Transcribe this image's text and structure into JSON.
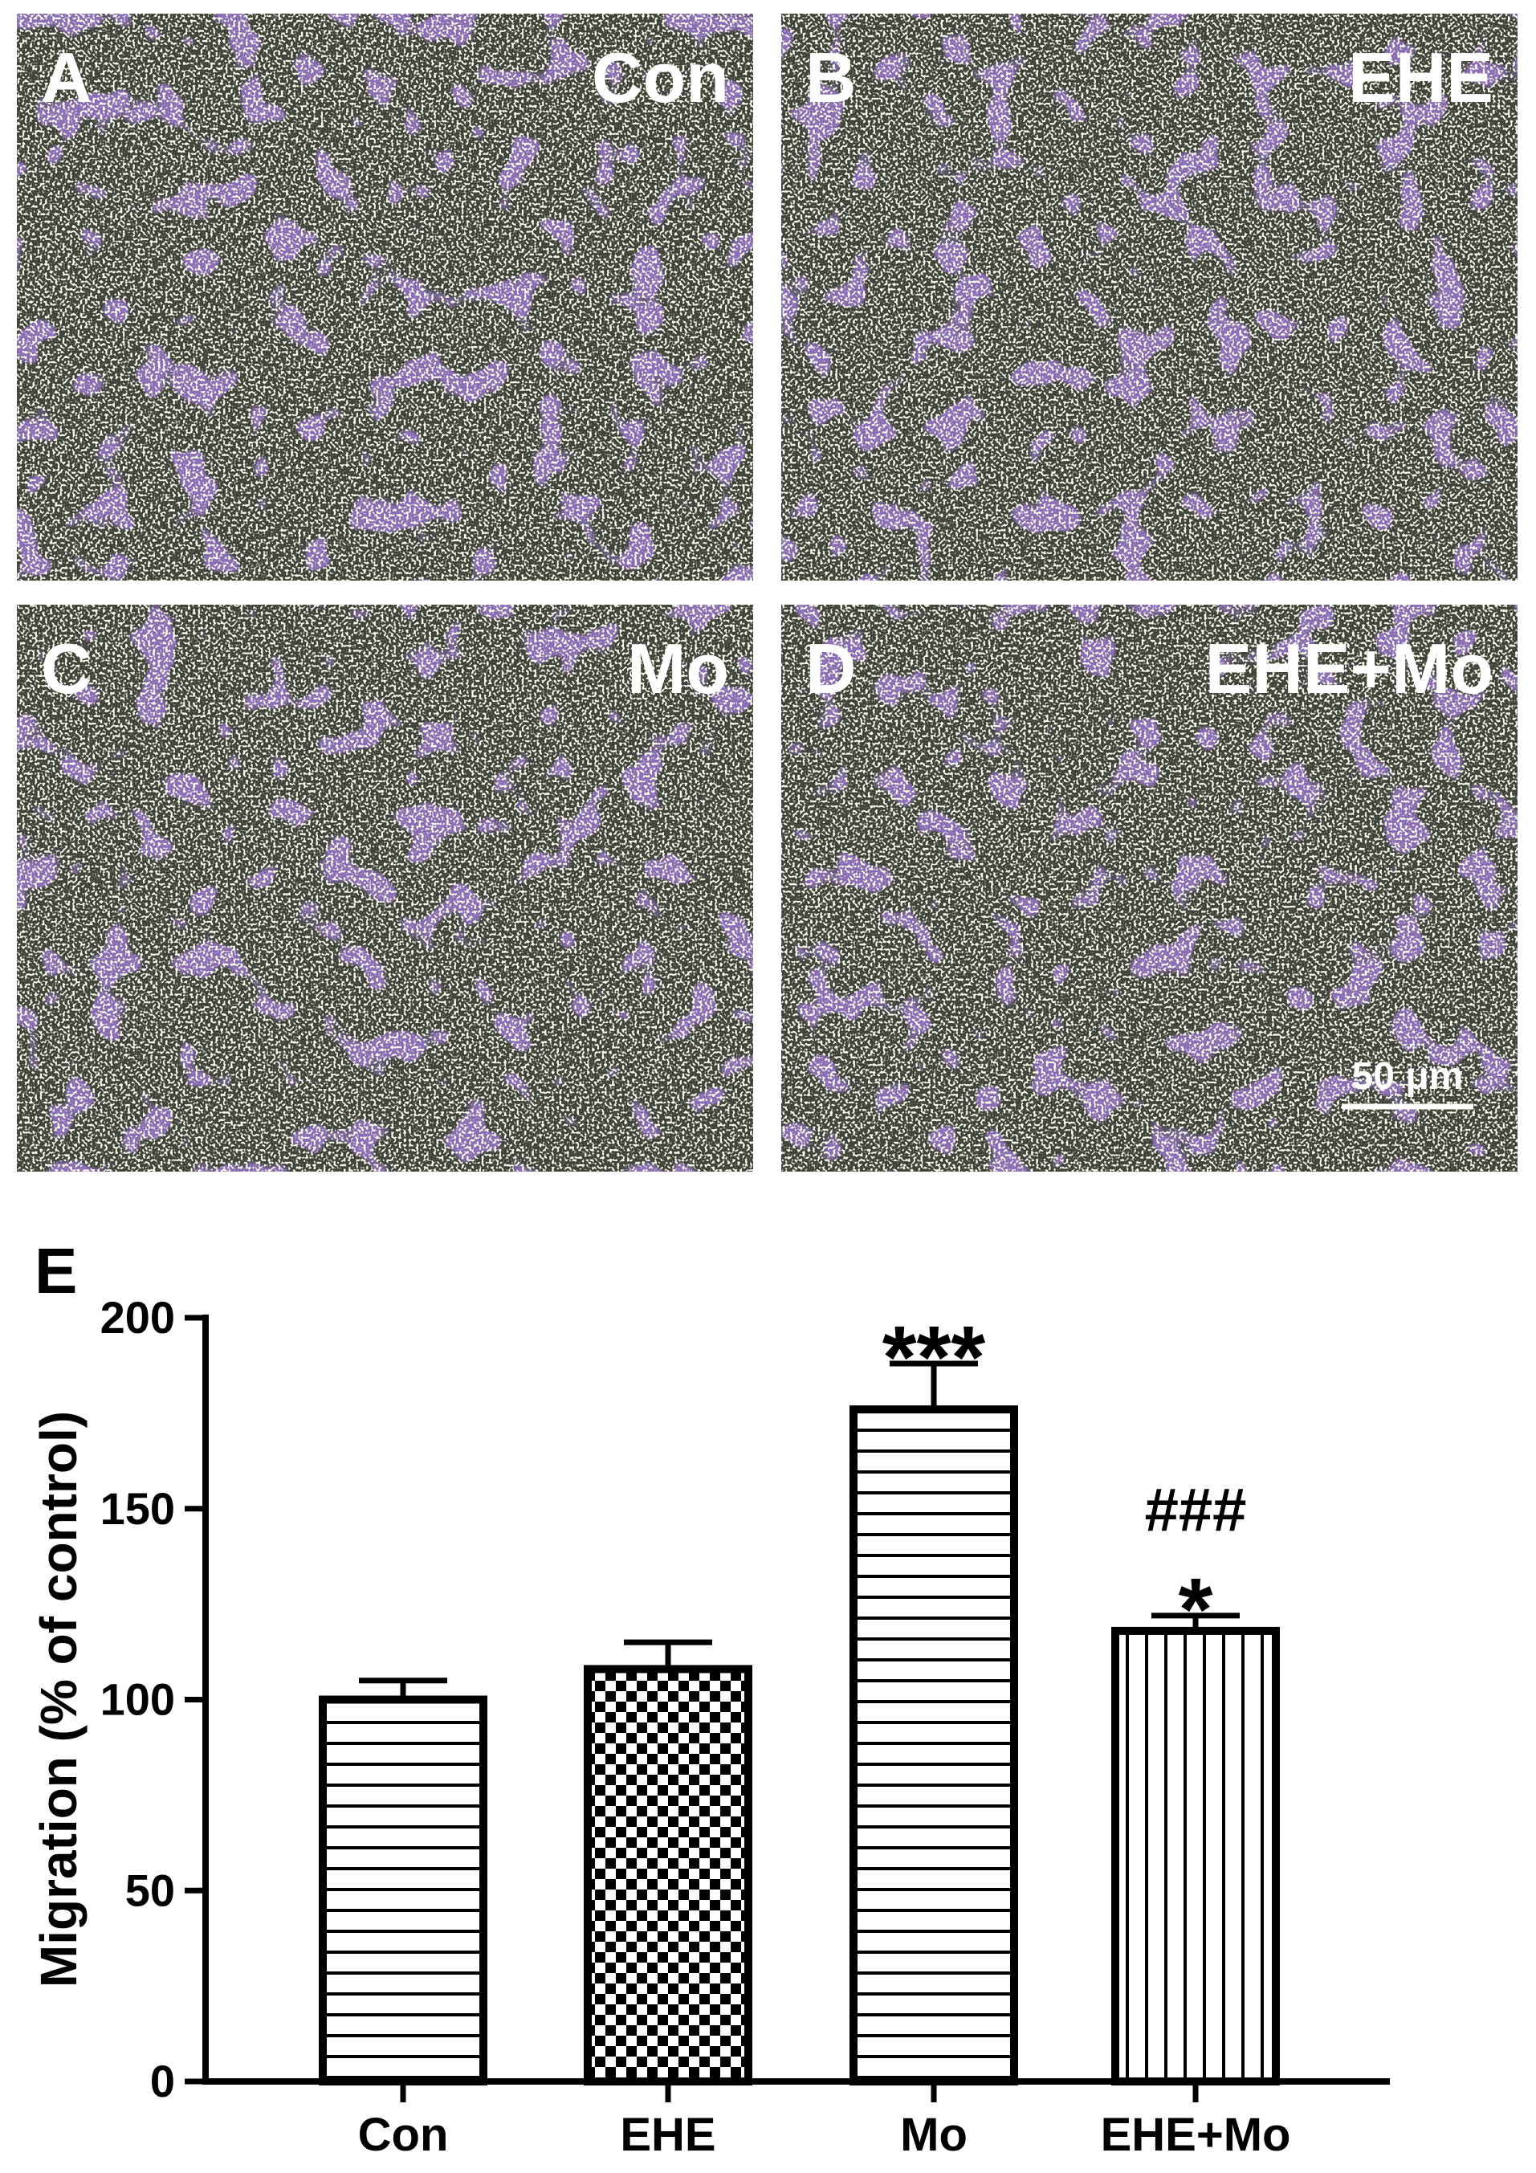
{
  "panels": [
    {
      "letter": "A",
      "label": "Con"
    },
    {
      "letter": "B",
      "label": "EHE"
    },
    {
      "letter": "C",
      "label": "Mo"
    },
    {
      "letter": "D",
      "label": "EHE+Mo"
    }
  ],
  "scale_bar": "50 μm",
  "chart_data": {
    "type": "bar",
    "panel_letter": "E",
    "y_label": "Migration (% of control)",
    "categories": [
      "Con",
      "EHE",
      "Mo",
      "EHE+Mo"
    ],
    "values": [
      100,
      108,
      176,
      118
    ],
    "errors": [
      5,
      7,
      12,
      4
    ],
    "patterns": [
      "horizontal",
      "checker",
      "horizontal",
      "vertical"
    ],
    "color": "#000000",
    "ylim": [
      0,
      200
    ],
    "yticks": [
      0,
      50,
      100,
      150,
      200
    ],
    "annotations": [
      {
        "text": "***",
        "category": "Mo"
      },
      {
        "text": "###",
        "category": "EHE+Mo"
      },
      {
        "text": "*",
        "category": "EHE+Mo"
      }
    ]
  }
}
